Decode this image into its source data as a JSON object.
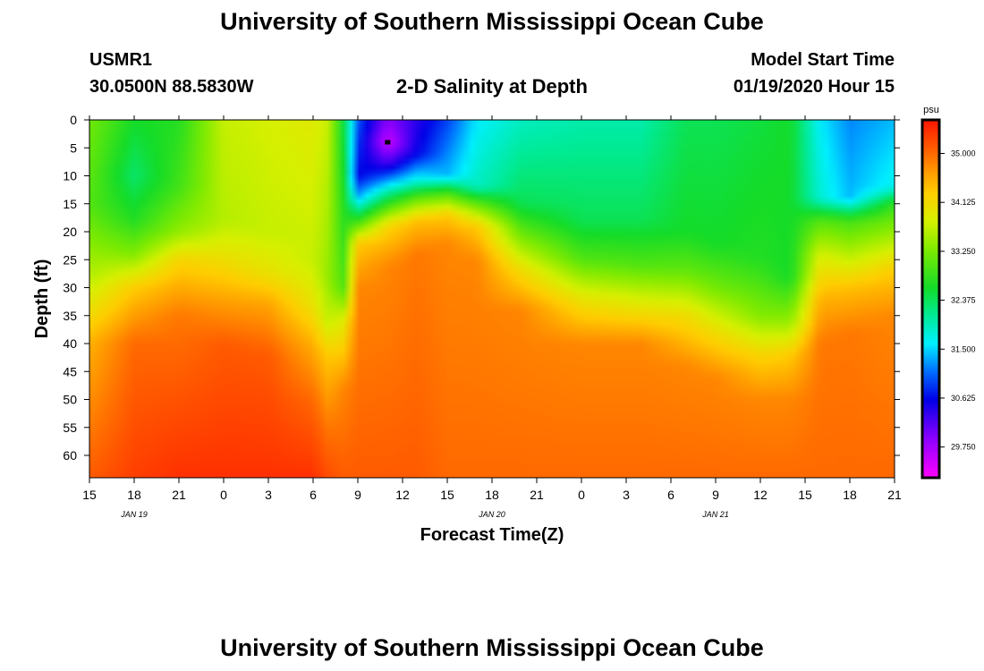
{
  "header": {
    "title_top": "University of Southern Mississippi Ocean Cube",
    "station": "USMR1",
    "coords": "30.0500N 88.5830W",
    "subtitle": "2-D Salinity at Depth",
    "model_label": "Model Start Time",
    "model_time": "01/19/2020 Hour 15",
    "title_bottom": "University of Southern Mississippi Ocean Cube"
  },
  "chart_data": {
    "type": "heatmap",
    "title": "2-D Salinity at Depth",
    "xlabel": "Forecast Time(Z)",
    "ylabel": "Depth (ft)",
    "x_tick_labels": [
      "15",
      "18",
      "21",
      "0",
      "3",
      "6",
      "9",
      "12",
      "15",
      "18",
      "21",
      "0",
      "3",
      "6",
      "9",
      "12",
      "15",
      "18",
      "21"
    ],
    "date_labels": [
      {
        "label": "JAN  19",
        "tick_index": 1
      },
      {
        "label": "JAN  20",
        "tick_index": 9
      },
      {
        "label": "JAN  21",
        "tick_index": 14
      }
    ],
    "y_ticks": [
      0,
      5,
      10,
      15,
      20,
      25,
      30,
      35,
      40,
      45,
      50,
      55,
      60
    ],
    "ylim": [
      0,
      64
    ],
    "xlim_hours": [
      0,
      54
    ],
    "colorbar": {
      "unit": "psu",
      "range": [
        29.2,
        35.6
      ],
      "ticks": [
        "35.000",
        "34.125",
        "33.250",
        "32.375",
        "31.500",
        "30.625",
        "29.750"
      ]
    },
    "columns": [
      {
        "hour": 0,
        "profile": [
          [
            0,
            33.2
          ],
          [
            15,
            33.0
          ],
          [
            28,
            33.6
          ],
          [
            40,
            34.5
          ],
          [
            64,
            35.1
          ]
        ]
      },
      {
        "hour": 3,
        "profile": [
          [
            0,
            32.6
          ],
          [
            10,
            32.3
          ],
          [
            18,
            32.7
          ],
          [
            24,
            33.3
          ],
          [
            30,
            34.3
          ],
          [
            40,
            35.0
          ],
          [
            64,
            35.3
          ]
        ]
      },
      {
        "hour": 6,
        "profile": [
          [
            0,
            32.7
          ],
          [
            12,
            32.9
          ],
          [
            20,
            33.4
          ],
          [
            25,
            34.2
          ],
          [
            35,
            34.9
          ],
          [
            64,
            35.4
          ]
        ]
      },
      {
        "hour": 9,
        "profile": [
          [
            0,
            33.7
          ],
          [
            18,
            33.6
          ],
          [
            24,
            34.0
          ],
          [
            32,
            34.6
          ],
          [
            40,
            35.1
          ],
          [
            64,
            35.4
          ]
        ]
      },
      {
        "hour": 12,
        "profile": [
          [
            0,
            33.8
          ],
          [
            20,
            33.7
          ],
          [
            27,
            34.0
          ],
          [
            33,
            34.6
          ],
          [
            42,
            35.1
          ],
          [
            64,
            35.4
          ]
        ]
      },
      {
        "hour": 15,
        "profile": [
          [
            0,
            33.9
          ],
          [
            25,
            33.7
          ],
          [
            33,
            34.0
          ],
          [
            40,
            34.5
          ],
          [
            50,
            35.0
          ],
          [
            64,
            35.4
          ]
        ]
      },
      {
        "hour": 16,
        "profile": [
          [
            0,
            33.7
          ],
          [
            28,
            33.4
          ],
          [
            36,
            33.7
          ],
          [
            42,
            34.3
          ],
          [
            55,
            34.9
          ],
          [
            64,
            35.2
          ]
        ]
      },
      {
        "hour": 17,
        "profile": [
          [
            0,
            32.5
          ],
          [
            20,
            32.8
          ],
          [
            30,
            33.0
          ],
          [
            36,
            33.9
          ],
          [
            48,
            34.8
          ],
          [
            64,
            35.1
          ]
        ]
      },
      {
        "hour": 18,
        "profile": [
          [
            0,
            31.0
          ],
          [
            10,
            30.6
          ],
          [
            14,
            31.4
          ],
          [
            18,
            32.8
          ],
          [
            22,
            34.3
          ],
          [
            30,
            34.8
          ],
          [
            64,
            35.1
          ]
        ]
      },
      {
        "hour": 20,
        "profile": [
          [
            0,
            29.9
          ],
          [
            4,
            29.5
          ],
          [
            8,
            30.3
          ],
          [
            12,
            31.7
          ],
          [
            15,
            32.8
          ],
          [
            19,
            34.2
          ],
          [
            26,
            34.8
          ],
          [
            64,
            35.1
          ]
        ]
      },
      {
        "hour": 22,
        "profile": [
          [
            0,
            30.4
          ],
          [
            6,
            30.6
          ],
          [
            11,
            31.8
          ],
          [
            14,
            33.1
          ],
          [
            18,
            34.4
          ],
          [
            24,
            34.9
          ],
          [
            64,
            35.1
          ]
        ]
      },
      {
        "hour": 24,
        "profile": [
          [
            0,
            30.9
          ],
          [
            10,
            31.4
          ],
          [
            13,
            32.9
          ],
          [
            17,
            34.3
          ],
          [
            22,
            34.8
          ],
          [
            64,
            35.0
          ]
        ]
      },
      {
        "hour": 26,
        "profile": [
          [
            0,
            31.6
          ],
          [
            12,
            31.9
          ],
          [
            15,
            33.1
          ],
          [
            19,
            34.3
          ],
          [
            25,
            34.8
          ],
          [
            64,
            35.0
          ]
        ]
      },
      {
        "hour": 29,
        "profile": [
          [
            0,
            31.9
          ],
          [
            15,
            32.4
          ],
          [
            20,
            33.1
          ],
          [
            27,
            34.1
          ],
          [
            34,
            34.8
          ],
          [
            64,
            35.0
          ]
        ]
      },
      {
        "hour": 33,
        "profile": [
          [
            0,
            32.0
          ],
          [
            18,
            32.4
          ],
          [
            25,
            33.0
          ],
          [
            32,
            34.0
          ],
          [
            40,
            34.8
          ],
          [
            64,
            35.0
          ]
        ]
      },
      {
        "hour": 37,
        "profile": [
          [
            0,
            32.0
          ],
          [
            18,
            32.4
          ],
          [
            26,
            33.0
          ],
          [
            32,
            33.8
          ],
          [
            40,
            34.8
          ],
          [
            64,
            35.0
          ]
        ]
      },
      {
        "hour": 40,
        "profile": [
          [
            0,
            32.4
          ],
          [
            20,
            32.6
          ],
          [
            27,
            33.1
          ],
          [
            35,
            34.1
          ],
          [
            44,
            34.8
          ],
          [
            64,
            35.0
          ]
        ]
      },
      {
        "hour": 42,
        "profile": [
          [
            0,
            32.4
          ],
          [
            22,
            32.6
          ],
          [
            30,
            33.2
          ],
          [
            38,
            34.1
          ],
          [
            46,
            34.8
          ],
          [
            64,
            35.0
          ]
        ]
      },
      {
        "hour": 45,
        "profile": [
          [
            0,
            32.5
          ],
          [
            25,
            32.7
          ],
          [
            35,
            33.3
          ],
          [
            42,
            34.2
          ],
          [
            50,
            34.8
          ],
          [
            64,
            35.0
          ]
        ]
      },
      {
        "hour": 47,
        "profile": [
          [
            0,
            32.6
          ],
          [
            28,
            32.6
          ],
          [
            36,
            33.4
          ],
          [
            42,
            34.3
          ],
          [
            50,
            34.8
          ],
          [
            64,
            35.0
          ]
        ]
      },
      {
        "hour": 49,
        "profile": [
          [
            0,
            31.6
          ],
          [
            14,
            31.8
          ],
          [
            18,
            33.0
          ],
          [
            24,
            33.8
          ],
          [
            32,
            34.5
          ],
          [
            40,
            34.9
          ],
          [
            64,
            35.0
          ]
        ]
      },
      {
        "hour": 51,
        "profile": [
          [
            0,
            31.2
          ],
          [
            14,
            31.4
          ],
          [
            18,
            32.9
          ],
          [
            24,
            33.6
          ],
          [
            30,
            34.4
          ],
          [
            38,
            34.9
          ],
          [
            64,
            35.0
          ]
        ]
      },
      {
        "hour": 54,
        "profile": [
          [
            0,
            31.4
          ],
          [
            12,
            31.7
          ],
          [
            15,
            32.8
          ],
          [
            20,
            33.4
          ],
          [
            27,
            34.3
          ],
          [
            35,
            34.8
          ],
          [
            64,
            35.0
          ]
        ]
      }
    ]
  }
}
